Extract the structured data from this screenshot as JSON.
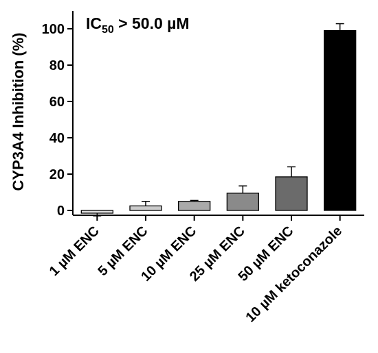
{
  "chart_data": {
    "type": "bar",
    "annotation": {
      "prefix": "IC",
      "subscript": "50",
      "suffix": " > 50.0 µM"
    },
    "ylabel": "CYP3A4 Inhibition (%)",
    "xlabel": "",
    "ylim": [
      -3,
      105
    ],
    "yticks": [
      0,
      20,
      40,
      60,
      80,
      100
    ],
    "ytick_labels": [
      "0",
      "20",
      "40",
      "60",
      "80",
      "100"
    ],
    "grid": false,
    "categories": [
      "1 µM ENC",
      "5 µM ENC",
      "10 µM ENC",
      "25 µM ENC",
      "50 µM ENC",
      "10 µM ketoconazole"
    ],
    "values": [
      -1.5,
      2.5,
      5.0,
      9.5,
      18.5,
      99.0
    ],
    "errors": [
      1.5,
      2.5,
      0.5,
      4.0,
      5.5,
      3.8
    ],
    "bar_colors": [
      "#e2e2e2",
      "#cccccc",
      "#aaaaaa",
      "#8a8a8a",
      "#6b6b6b",
      "#000000"
    ]
  }
}
